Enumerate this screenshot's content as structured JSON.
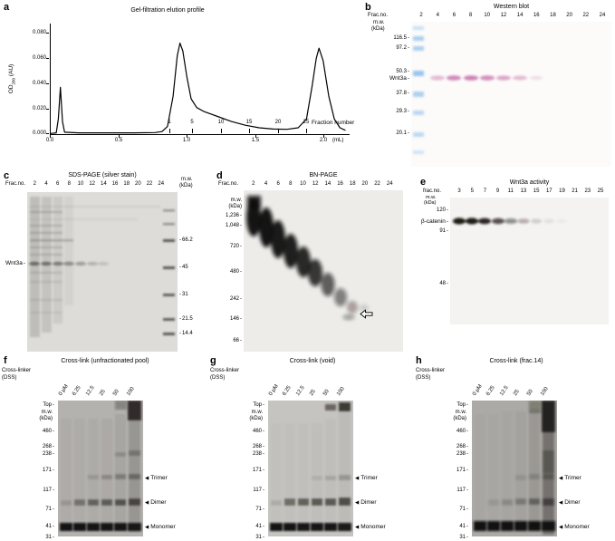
{
  "colors": {
    "western_band_pink": "#c46ea6",
    "ladder_blue": "#9cc4ec",
    "gel_dark_band": "#121110"
  },
  "chart_data": {
    "type": "line",
    "title": "Gel-filtration elution profile",
    "xlabel": "(mL)",
    "ylabel": "OD280 (AU)",
    "xlim": [
      0,
      2.15
    ],
    "ylim": [
      0,
      0.0875
    ],
    "x_ticks": [
      0.0,
      0.5,
      1.0,
      1.5,
      2.0
    ],
    "y_ticks": [
      0.0,
      0.02,
      0.04,
      0.06,
      0.08
    ],
    "fraction_ticks": [
      1,
      5,
      10,
      15,
      20,
      25
    ],
    "fraction_axis_label": "Fraction number",
    "x": [
      0,
      0.04,
      0.055,
      0.07,
      0.085,
      0.1,
      0.2,
      0.4,
      0.6,
      0.75,
      0.8,
      0.84,
      0.88,
      0.91,
      0.93,
      0.95,
      0.98,
      1.01,
      1.05,
      1.1,
      1.2,
      1.3,
      1.4,
      1.5,
      1.6,
      1.7,
      1.78,
      1.84,
      1.88,
      1.91,
      1.93,
      1.96,
      2.0,
      2.04,
      2.08,
      2.12
    ],
    "y": [
      0.0005,
      0.001,
      0.012,
      0.037,
      0.01,
      0.0015,
      0.001,
      0.001,
      0.001,
      0.0012,
      0.002,
      0.006,
      0.03,
      0.062,
      0.072,
      0.066,
      0.045,
      0.028,
      0.021,
      0.018,
      0.014,
      0.01,
      0.007,
      0.005,
      0.004,
      0.0038,
      0.005,
      0.012,
      0.038,
      0.06,
      0.068,
      0.058,
      0.03,
      0.012,
      0.005,
      0.003
    ]
  },
  "panel_a": {
    "letter": "a",
    "title": "Gel-filtration elution profile",
    "y_label": {
      "pre": "OD",
      "sub": "280",
      "post": " (AU)"
    },
    "y_ticks": [
      "0.080",
      "0.060",
      "0.040",
      "0.020",
      "0.000"
    ],
    "x_ticks": [
      "0.0",
      "0.5",
      "1.0",
      "1.5",
      "2.0"
    ],
    "x_unit": "(mL)",
    "fraction_label": "Fraction number",
    "fraction_ticks": [
      "1",
      "5",
      "10",
      "15",
      "20",
      "25"
    ]
  },
  "panel_b": {
    "letter": "b",
    "title": "Western blot",
    "lane_header": "Frac.no.",
    "lanes": [
      "2",
      "4",
      "6",
      "8",
      "10",
      "12",
      "14",
      "16",
      "18",
      "20",
      "22",
      "24"
    ],
    "mw_header": [
      "m.w.",
      "(kDa)"
    ],
    "mw_values": [
      "116.5",
      "97.2",
      "50.3",
      "37.8",
      "29.3",
      "20.1"
    ],
    "protein_label": "Wnt3a"
  },
  "panel_c": {
    "letter": "c",
    "title": "SDS-PAGE (silver stain)",
    "lane_header": "Frac.no.",
    "lanes": [
      "2",
      "4",
      "6",
      "8",
      "10",
      "12",
      "14",
      "16",
      "18",
      "20",
      "22",
      "24"
    ],
    "mw_header": [
      "m.w.",
      "(kDa)"
    ],
    "mw_values": [
      "66.2",
      "45",
      "31",
      "21.5",
      "14.4"
    ],
    "protein_label": "Wnt3a"
  },
  "panel_d": {
    "letter": "d",
    "title": "BN-PAGE",
    "lane_header": "Frac.no.",
    "lanes": [
      "2",
      "4",
      "6",
      "8",
      "10",
      "12",
      "14",
      "16",
      "18",
      "20",
      "22",
      "24"
    ],
    "mw_header": [
      "m.w.",
      "(kDa)"
    ],
    "mw_values": [
      "1,236",
      "1,048",
      "720",
      "480",
      "242",
      "146",
      "66"
    ],
    "arrow_icon": "open-left-arrow"
  },
  "panel_e": {
    "letter": "e",
    "title": "Wnt3a activity",
    "lane_header": "frac.no.",
    "lanes": [
      "3",
      "5",
      "7",
      "9",
      "11",
      "13",
      "15",
      "17",
      "19",
      "21",
      "23",
      "25"
    ],
    "mw_header": [
      "m.w.",
      "(kDa)"
    ],
    "mw_values": [
      "120",
      "91",
      "48"
    ],
    "protein_label": "β-catenin"
  },
  "crosslink_common": {
    "linker_label": [
      "Cross-linker",
      "(DSS)"
    ],
    "lanes": [
      "0 μM",
      "6.25",
      "12.5",
      "25",
      "50",
      "100"
    ],
    "mw_header": [
      "m.w.",
      "(kDa)"
    ],
    "top_label": "Top",
    "mw_values": [
      "460",
      "268",
      "238",
      "171",
      "117",
      "71",
      "41",
      "31"
    ],
    "marker": "◀",
    "annotations": [
      "Trimer",
      "Dimer",
      "Monomer"
    ]
  },
  "panel_f": {
    "letter": "f",
    "title": "Cross-link (unfractionated pool)"
  },
  "panel_g": {
    "letter": "g",
    "title": "Cross-link (void)"
  },
  "panel_h": {
    "letter": "h",
    "title": "Cross-link (frac.14)"
  }
}
